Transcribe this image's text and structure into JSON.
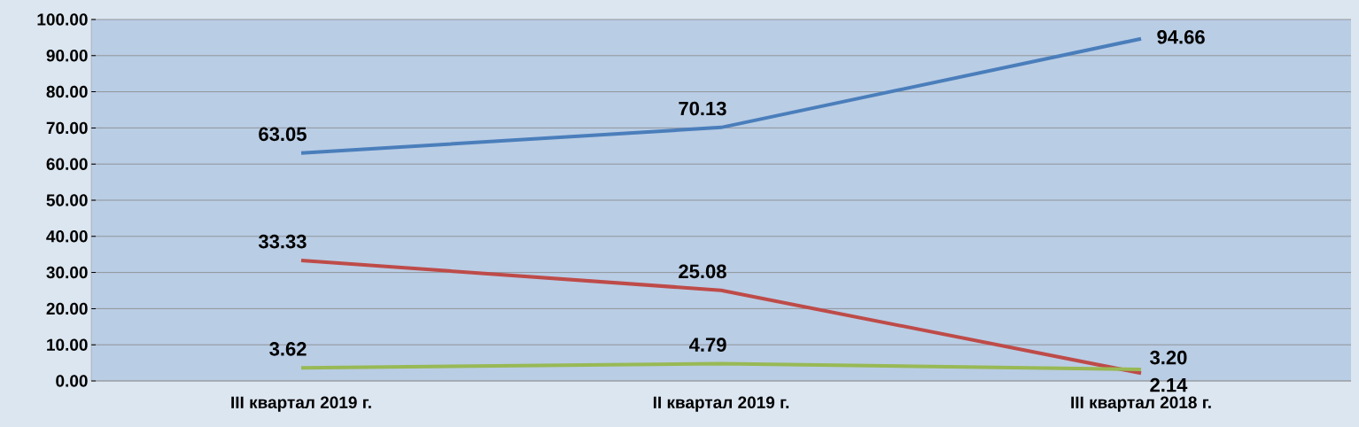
{
  "chart_data": {
    "type": "line",
    "categories": [
      "III квартал 2019 г.",
      "II квартал 2019 г.",
      "III квартал 2018 г."
    ],
    "series": [
      {
        "color": "#4a7ebb",
        "values": [
          63.05,
          70.13,
          94.66
        ],
        "value_labels": [
          "63.05",
          "70.13",
          "94.66"
        ]
      },
      {
        "color": "#be4b48",
        "values": [
          33.33,
          25.08,
          2.14
        ],
        "value_labels": [
          "33.33",
          "25.08",
          "2.14"
        ]
      },
      {
        "color": "#98b954",
        "values": [
          3.62,
          4.79,
          3.2
        ],
        "value_labels": [
          "3.62",
          "4.79",
          "3.20"
        ]
      }
    ],
    "ylim": [
      0,
      100
    ],
    "yticks": [
      {
        "value": 0,
        "label": "0.00"
      },
      {
        "value": 10,
        "label": "10.00"
      },
      {
        "value": 20,
        "label": "20.00"
      },
      {
        "value": 30,
        "label": "30.00"
      },
      {
        "value": 40,
        "label": "40.00"
      },
      {
        "value": 50,
        "label": "50.00"
      },
      {
        "value": 60,
        "label": "60.00"
      },
      {
        "value": 70,
        "label": "70.00"
      },
      {
        "value": 80,
        "label": "80.00"
      },
      {
        "value": 90,
        "label": "90.00"
      },
      {
        "value": 100,
        "label": "100.00"
      }
    ],
    "grid": "y",
    "marker": "none",
    "line_style": "solid"
  }
}
